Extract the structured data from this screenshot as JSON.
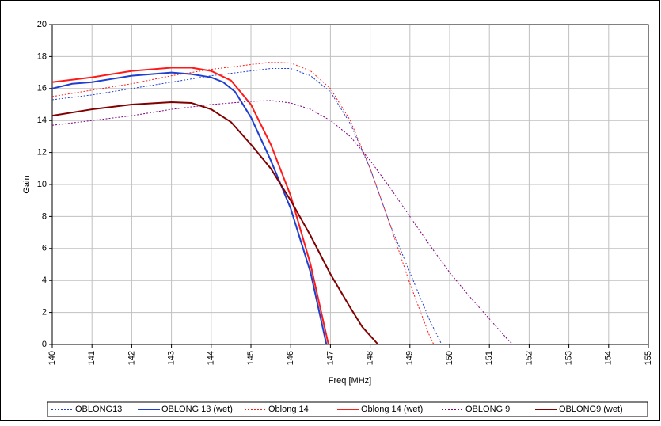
{
  "chart_data": {
    "type": "line",
    "xlabel": "Freq [MHz]",
    "ylabel": "Gain",
    "xlim": [
      140,
      155
    ],
    "xticks": [
      140,
      141,
      142,
      143,
      144,
      145,
      146,
      147,
      148,
      149,
      150,
      151,
      152,
      153,
      154,
      155
    ],
    "ylim": [
      0,
      20
    ],
    "yticks": [
      0,
      2,
      4,
      6,
      8,
      10,
      12,
      14,
      16,
      18,
      20
    ],
    "grid": true,
    "legend": "bottom",
    "series": [
      {
        "name": "OBLONG13",
        "color": "#1f3fd0",
        "style": "dotted",
        "x": [
          140,
          141,
          142,
          143,
          144,
          145,
          145.5,
          146,
          146.5,
          147,
          147.5,
          148,
          148.5,
          149,
          149.5,
          149.8
        ],
        "values": [
          15.3,
          15.6,
          16.0,
          16.4,
          16.8,
          17.1,
          17.25,
          17.25,
          16.8,
          15.8,
          13.8,
          11.0,
          7.5,
          4.5,
          1.5,
          0
        ]
      },
      {
        "name": "OBLONG 13 (wet)",
        "color": "#1f3fd0",
        "style": "solid",
        "x": [
          140,
          140.5,
          141,
          141.5,
          142,
          142.5,
          143,
          143.5,
          144,
          144.3,
          144.6,
          145,
          145.5,
          146,
          146.5,
          146.9
        ],
        "values": [
          16.0,
          16.3,
          16.4,
          16.6,
          16.8,
          16.9,
          17.0,
          16.9,
          16.7,
          16.4,
          15.8,
          14.2,
          11.5,
          8.5,
          4.5,
          0
        ]
      },
      {
        "name": "Oblong 14",
        "color": "#ff1a1a",
        "style": "dotted",
        "x": [
          140,
          141,
          142,
          143,
          144,
          145,
          145.5,
          146,
          146.5,
          147,
          147.5,
          148,
          148.5,
          149,
          149.5,
          149.6
        ],
        "values": [
          15.5,
          15.9,
          16.3,
          16.8,
          17.2,
          17.5,
          17.65,
          17.6,
          17.1,
          16.0,
          14.0,
          11.0,
          7.5,
          3.8,
          0.5,
          0
        ]
      },
      {
        "name": "Oblong 14 (wet)",
        "color": "#ff1a1a",
        "style": "solid",
        "x": [
          140,
          141,
          142,
          143,
          143.5,
          144,
          144.5,
          145,
          145.5,
          146,
          146.5,
          146.95
        ],
        "values": [
          16.4,
          16.7,
          17.1,
          17.3,
          17.3,
          17.1,
          16.5,
          15.0,
          12.5,
          9.3,
          5.0,
          0
        ]
      },
      {
        "name": "OBLONG 9",
        "color": "#800080",
        "style": "dotted",
        "x": [
          140,
          141,
          142,
          143,
          144,
          145,
          145.5,
          146,
          146.5,
          147,
          147.5,
          148,
          148.5,
          149,
          149.5,
          150,
          150.5,
          151,
          151.5,
          151.6
        ],
        "values": [
          13.7,
          14.0,
          14.3,
          14.7,
          15.0,
          15.2,
          15.25,
          15.1,
          14.7,
          14.0,
          13.0,
          11.5,
          9.8,
          8.0,
          6.2,
          4.5,
          3.0,
          1.6,
          0.2,
          0
        ]
      },
      {
        "name": "OBLONG9 (wet)",
        "color": "#800000",
        "style": "solid",
        "x": [
          140,
          141,
          142,
          143,
          143.5,
          144,
          144.5,
          145,
          145.5,
          146,
          146.5,
          147,
          147.5,
          147.8,
          148.2
        ],
        "values": [
          14.3,
          14.7,
          15.0,
          15.15,
          15.1,
          14.7,
          13.9,
          12.5,
          11.0,
          9.0,
          6.8,
          4.4,
          2.3,
          1.1,
          0
        ]
      }
    ]
  }
}
